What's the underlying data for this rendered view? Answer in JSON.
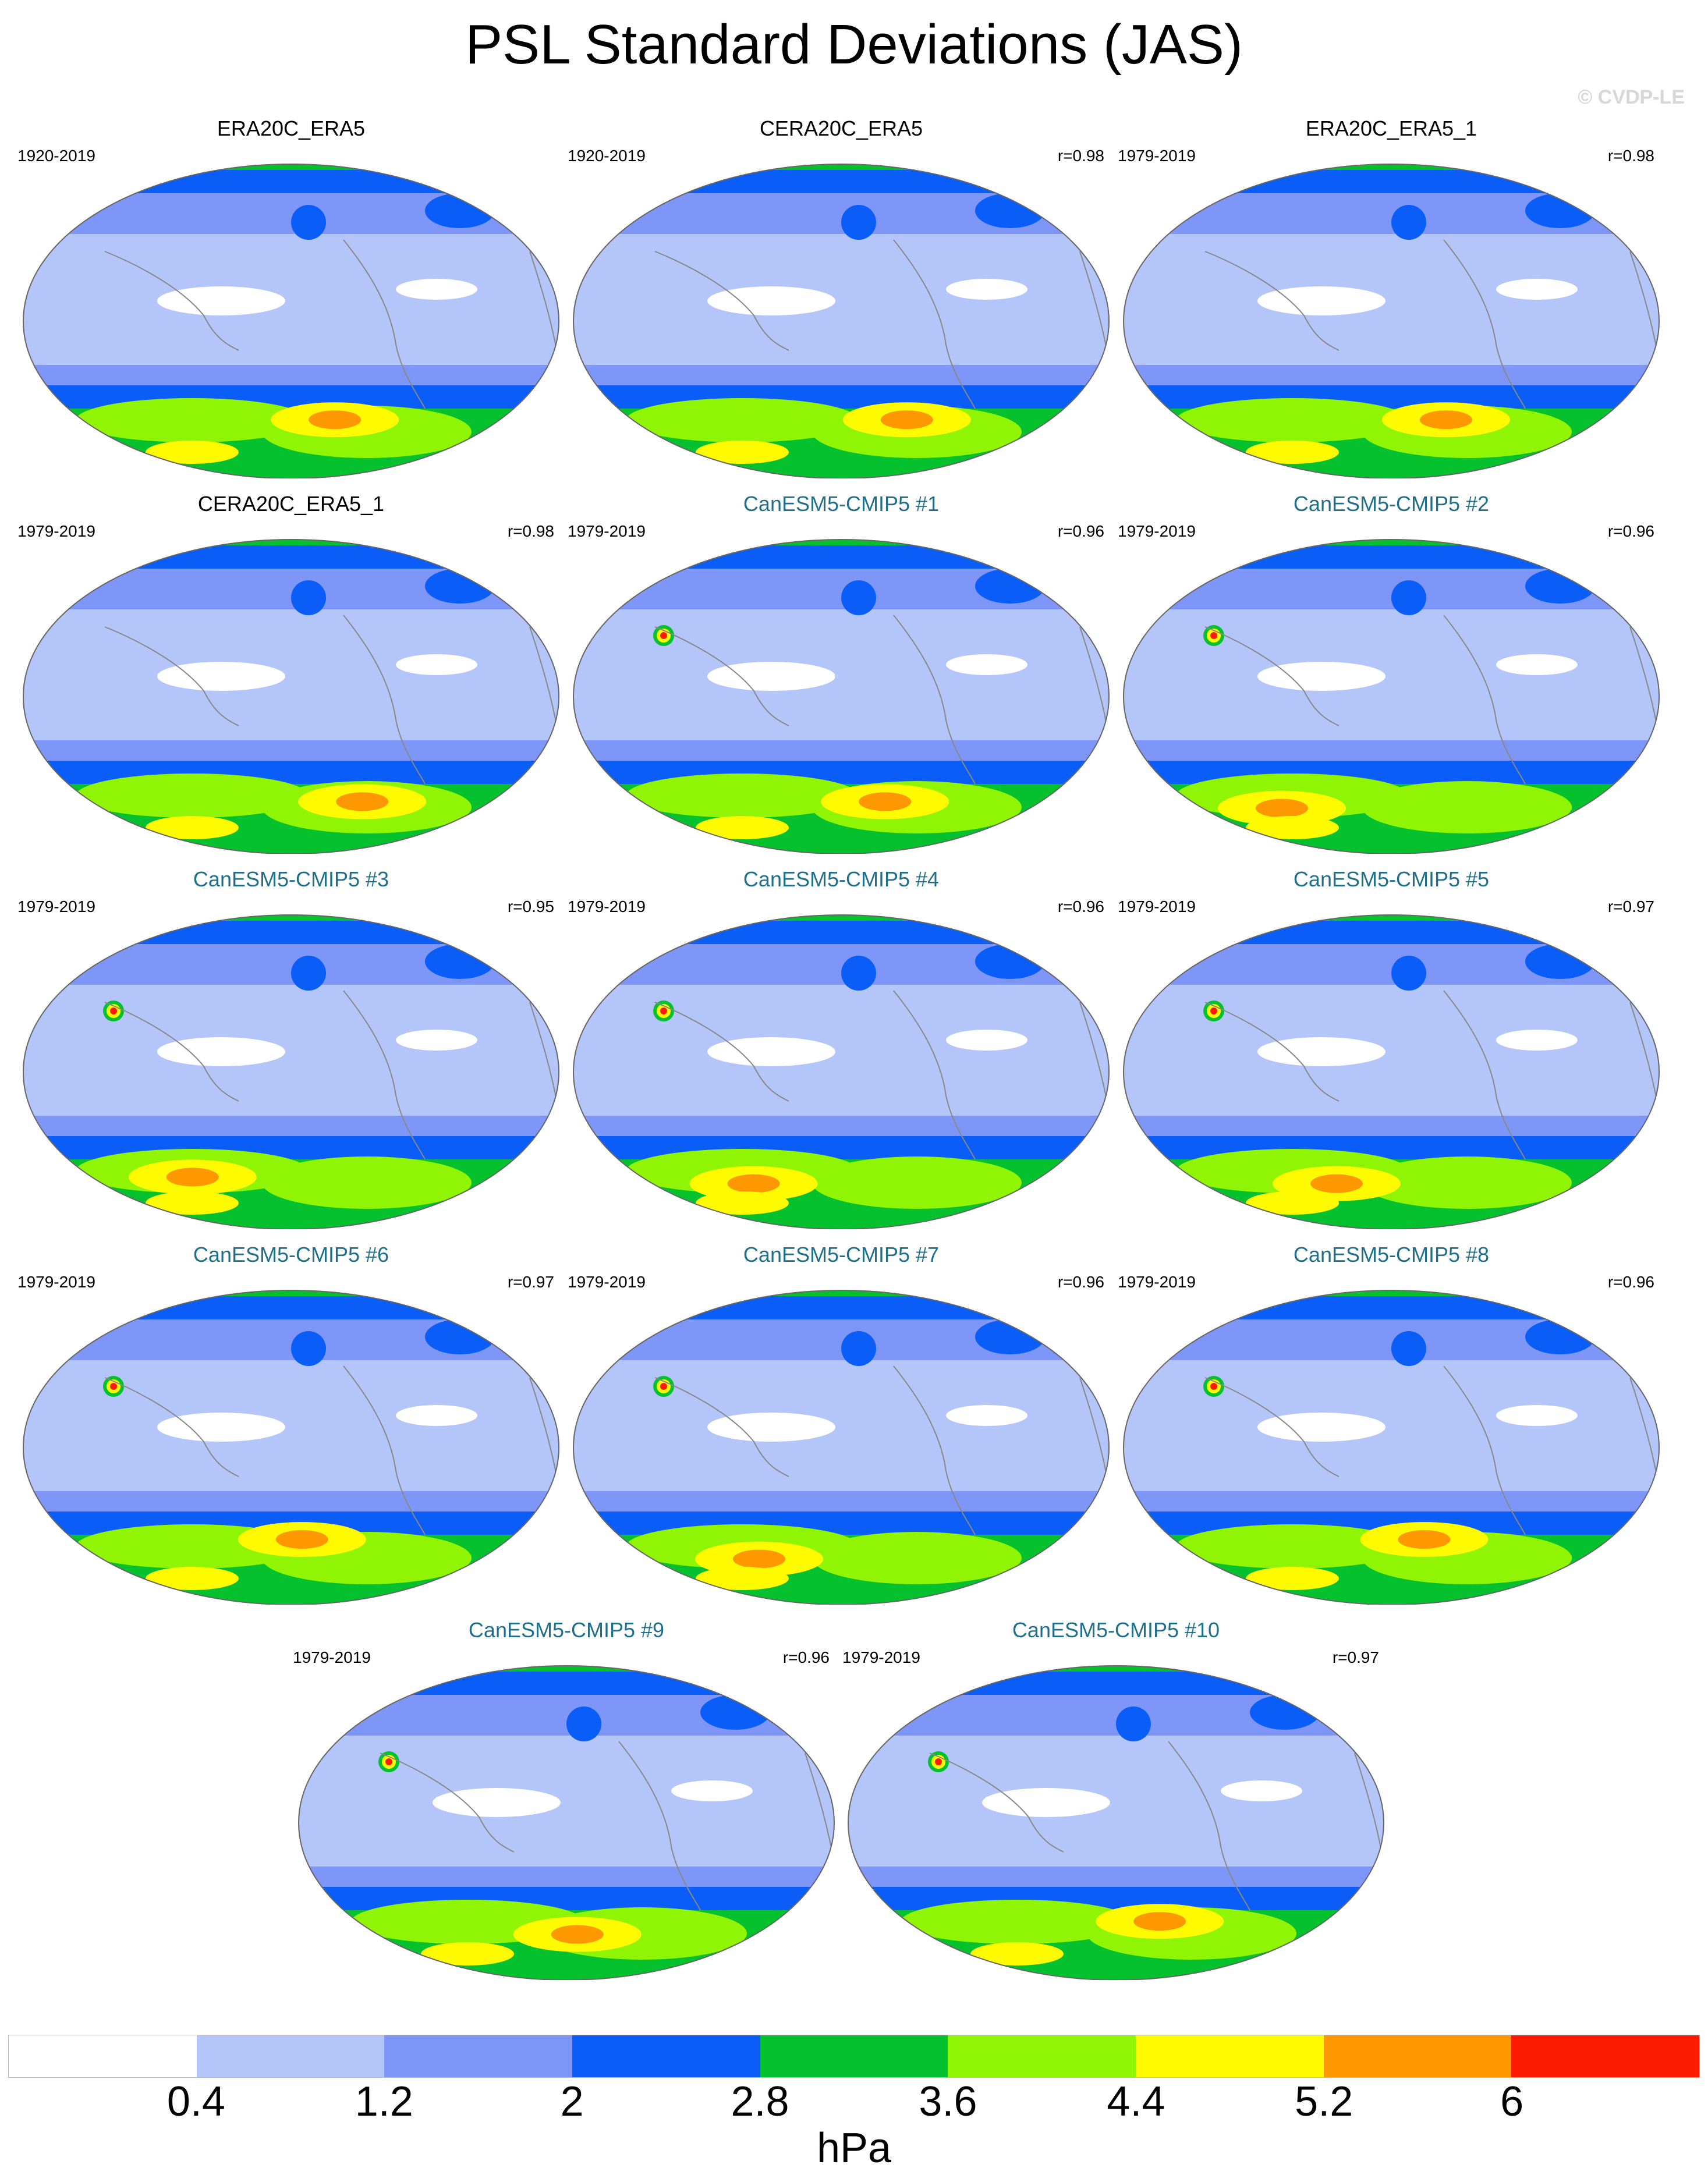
{
  "title": "PSL Standard Deviations (JAS)",
  "copyright": "© CVDP-LE",
  "panels": [
    {
      "name": "ERA20C_ERA5",
      "kind": "obs",
      "period": "1920-2019",
      "r": "",
      "hot": 0,
      "fx": 0.58,
      "fy": 0.82
    },
    {
      "name": "CERA20C_ERA5",
      "kind": "obs",
      "period": "1920-2019",
      "r": "r=0.98",
      "hot": 0,
      "fx": 0.62,
      "fy": 0.82
    },
    {
      "name": "ERA20C_ERA5_1",
      "kind": "obs",
      "period": "1979-2019",
      "r": "r=0.98",
      "hot": 0,
      "fx": 0.6,
      "fy": 0.82
    },
    {
      "name": "CERA20C_ERA5_1",
      "kind": "obs",
      "period": "1979-2019",
      "r": "r=0.98",
      "hot": 0,
      "fx": 0.63,
      "fy": 0.84
    },
    {
      "name": "CanESM5-CMIP5 #1",
      "kind": "model",
      "period": "1979-2019",
      "r": "r=0.96",
      "hot": 1,
      "fx": 0.58,
      "fy": 0.84
    },
    {
      "name": "CanESM5-CMIP5 #2",
      "kind": "model",
      "period": "1979-2019",
      "r": "r=0.96",
      "hot": 1,
      "fx": 0.3,
      "fy": 0.86
    },
    {
      "name": "CanESM5-CMIP5 #3",
      "kind": "model",
      "period": "1979-2019",
      "r": "r=0.95",
      "hot": 1,
      "fx": 0.32,
      "fy": 0.84
    },
    {
      "name": "CanESM5-CMIP5 #4",
      "kind": "model",
      "period": "1979-2019",
      "r": "r=0.96",
      "hot": 1,
      "fx": 0.34,
      "fy": 0.86
    },
    {
      "name": "CanESM5-CMIP5 #5",
      "kind": "model",
      "period": "1979-2019",
      "r": "r=0.97",
      "hot": 1,
      "fx": 0.4,
      "fy": 0.86
    },
    {
      "name": "CanESM5-CMIP5 #6",
      "kind": "model",
      "period": "1979-2019",
      "r": "r=0.97",
      "hot": 1,
      "fx": 0.52,
      "fy": 0.8
    },
    {
      "name": "CanESM5-CMIP5 #7",
      "kind": "model",
      "period": "1979-2019",
      "r": "r=0.96",
      "hot": 1,
      "fx": 0.35,
      "fy": 0.86
    },
    {
      "name": "CanESM5-CMIP5 #8",
      "kind": "model",
      "period": "1979-2019",
      "r": "r=0.96",
      "hot": 1,
      "fx": 0.56,
      "fy": 0.8
    },
    {
      "name": "CanESM5-CMIP5 #9",
      "kind": "model",
      "period": "1979-2019",
      "r": "r=0.96",
      "hot": 1,
      "fx": 0.52,
      "fy": 0.86
    },
    {
      "name": "CanESM5-CMIP5 #10",
      "kind": "model",
      "period": "1979-2019",
      "r": "r=0.97",
      "hot": 1,
      "fx": 0.58,
      "fy": 0.82
    }
  ],
  "colorbar": {
    "colors": [
      "#ffffff",
      "#b4c5fa",
      "#7e96f7",
      "#0a5df7",
      "#05c12e",
      "#90f504",
      "#fdfa01",
      "#fd9800",
      "#fd1b01"
    ],
    "labels": [
      "0.4",
      "1.2",
      "2",
      "2.8",
      "3.6",
      "4.4",
      "5.2",
      "6"
    ],
    "units": "hPa"
  }
}
